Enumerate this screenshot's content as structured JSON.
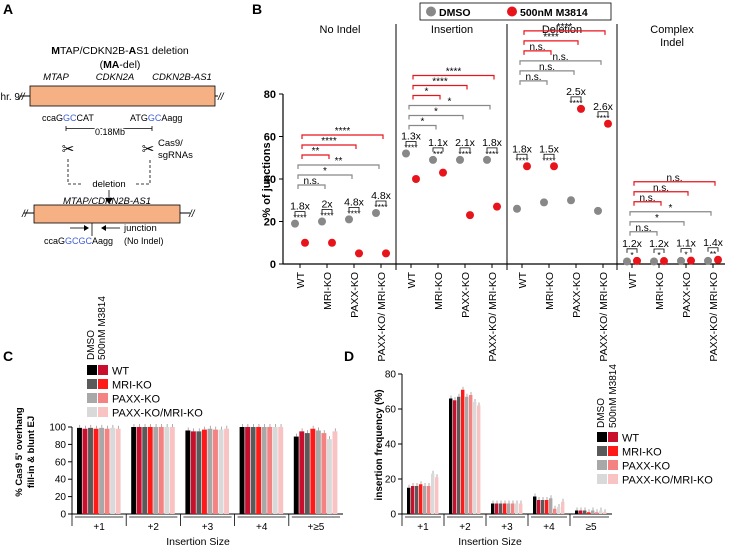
{
  "panels": {
    "A": {
      "label": "A",
      "title_line1": "MTAP/CDKN2B-AS1 deletion",
      "title_line2": "(MA-del)",
      "chr": "Chr. 9",
      "genes": [
        "MTAP",
        "CDKN2A",
        "CDKN2B-AS1"
      ],
      "left_seq": {
        "pre": "ccaG",
        "hl": "GC",
        "post": "CAT"
      },
      "right_seq": {
        "pre": "ATG",
        "hl": "GC",
        "post": "Aagg"
      },
      "distance": "0.18Mb",
      "cas9": "Cas9/",
      "sgrnas": "sgRNAs",
      "deletion": "deletion",
      "fused_gene": "MTAP/CDKN2B-AS1",
      "junction": "junction",
      "junction_seq": {
        "pre": "ccaG",
        "hl": "GCGC",
        "post": "Aagg"
      },
      "no_indel": "(No Indel)"
    },
    "B": {
      "label": "B",
      "legend": {
        "dmso": "DMSO",
        "m3814": "500nM M3814"
      },
      "y_label": "% of junctions",
      "y_ticks": [
        "0",
        "20",
        "40",
        "60",
        "80"
      ],
      "groups": [
        {
          "title": "No Indel",
          "folds": [
            "1.8x",
            "2x",
            "4.8x",
            "4.8x"
          ],
          "sigs": [
            "****",
            "****",
            "****",
            "****"
          ],
          "brackets": [
            {
              "label": "n.s.",
              "c": "g"
            },
            {
              "label": "*",
              "c": "g"
            },
            {
              "label": "**",
              "c": "g"
            },
            {
              "label": "**",
              "c": "r"
            },
            {
              "label": "****",
              "c": "r"
            },
            {
              "label": "****",
              "c": "r"
            }
          ]
        },
        {
          "title": "Insertion",
          "folds": [
            "1.3x",
            "1.1x",
            "2.1x",
            "1.8x"
          ],
          "sigs": [
            "****",
            "***",
            "****",
            "****"
          ],
          "brackets": [
            {
              "label": "*",
              "c": "g"
            },
            {
              "label": "*",
              "c": "g"
            },
            {
              "label": "*",
              "c": "g"
            },
            {
              "label": "*",
              "c": "r"
            },
            {
              "label": "****",
              "c": "r"
            },
            {
              "label": "****",
              "c": "r"
            }
          ]
        },
        {
          "title": "Deletion",
          "folds": [
            "1.8x",
            "1.5x",
            "2.5x",
            "2.6x"
          ],
          "sigs": [
            "****",
            "****",
            "****",
            "****"
          ],
          "brackets": [
            {
              "label": "n.s.",
              "c": "g"
            },
            {
              "label": "n.s.",
              "c": "g"
            },
            {
              "label": "n.s.",
              "c": "g"
            },
            {
              "label": "n.s.",
              "c": "r"
            },
            {
              "label": "****",
              "c": "r"
            },
            {
              "label": "****",
              "c": "r"
            }
          ]
        },
        {
          "title": "Complex Indel",
          "title_line1": "Complex",
          "title_line2": "Indel",
          "folds": [
            "1.2x",
            "1.2x",
            "1.1x",
            "1.4x"
          ],
          "sigs": [
            "*",
            "*",
            "*",
            "**"
          ],
          "brackets": [
            {
              "label": "n.s.",
              "c": "g"
            },
            {
              "label": "*",
              "c": "g"
            },
            {
              "label": "*",
              "c": "g"
            },
            {
              "label": "n.s.",
              "c": "r"
            },
            {
              "label": "n.s.",
              "c": "r"
            },
            {
              "label": "n.s.",
              "c": "r"
            }
          ]
        }
      ],
      "categories": [
        "WT",
        "MRI-KO",
        "PAXX-KO",
        "PAXX-KO/ MRI-KO"
      ]
    },
    "C": {
      "label": "C",
      "y_label_line1": "% Cas9 5' overhang",
      "y_label_line2": "fill-in & blunt EJ",
      "y_ticks": [
        "0",
        "20",
        "40",
        "60",
        "80",
        "100"
      ],
      "x_label": "Insertion Size",
      "categories": [
        "+1",
        "+2",
        "+3",
        "+4",
        "+≥5"
      ],
      "legend_header": [
        "DMSO",
        "500nM M3814"
      ],
      "legend": [
        "WT",
        "MRI-KO",
        "PAXX-KO",
        "PAXX-KO/MRI-KO"
      ]
    },
    "D": {
      "label": "D",
      "y_label": "insertion frequency (%)",
      "y_ticks": [
        "0",
        "20",
        "40",
        "60",
        "80"
      ],
      "x_label": "Insertion Size",
      "categories": [
        "+1",
        "+2",
        "+3",
        "+4",
        "≥5"
      ],
      "legend_header": [
        "DMSO",
        "500nM M3814"
      ],
      "legend": [
        "WT",
        "MRI-KO",
        "PAXX-KO",
        "PAXX-KO/MRI-KO"
      ]
    }
  },
  "colors": {
    "dmso": "#888888",
    "m3814": "#e8141b",
    "cond": [
      "#000000",
      "#c8102e",
      "#5a5a5a",
      "#ff1a1a",
      "#a8a8a8",
      "#f58282",
      "#d9d9d9",
      "#f9c3c3"
    ],
    "orange": "#f5b183"
  },
  "chart_data": [
    {
      "type": "scatter",
      "title": "% of junctions",
      "ylabel": "% of junctions",
      "ylim": [
        0,
        80
      ],
      "categories": [
        "WT",
        "MRI-KO",
        "PAXX-KO",
        "PAXX-KO/ MRI-KO"
      ],
      "groups": [
        "No Indel",
        "Insertion",
        "Deletion",
        "Complex Indel"
      ],
      "series": [
        {
          "name": "DMSO",
          "values": [
            [
              19,
              20,
              21,
              24
            ],
            [
              52,
              49,
              49,
              49
            ],
            [
              26,
              29,
              30,
              25
            ],
            [
              1.2,
              1.2,
              1.5,
              1.5
            ]
          ]
        },
        {
          "name": "500nM M3814",
          "values": [
            [
              10,
              10,
              5,
              5
            ],
            [
              40,
              43,
              23,
              27
            ],
            [
              46,
              46,
              73,
              66
            ],
            [
              1.5,
              1.4,
              1.6,
              2
            ]
          ]
        }
      ]
    },
    {
      "type": "bar",
      "title": "% Cas9 5' overhang fill-in & blunt EJ",
      "ylabel": "% Cas9 5' overhang fill-in & blunt EJ",
      "xlabel": "Insertion Size",
      "ylim": [
        0,
        100
      ],
      "categories": [
        "+1",
        "+2",
        "+3",
        "+4",
        "+≥5"
      ],
      "series": [
        {
          "name": "WT DMSO",
          "values": [
            99,
            100,
            96,
            100,
            89
          ]
        },
        {
          "name": "WT 500nM M3814",
          "values": [
            98,
            100,
            95,
            100,
            95
          ]
        },
        {
          "name": "MRI-KO DMSO",
          "values": [
            99,
            100,
            95,
            100,
            93
          ]
        },
        {
          "name": "MRI-KO 500nM M3814",
          "values": [
            98,
            100,
            97,
            100,
            98
          ]
        },
        {
          "name": "PAXX-KO DMSO",
          "values": [
            99,
            100,
            98,
            100,
            96
          ]
        },
        {
          "name": "PAXX-KO 500nM M3814",
          "values": [
            98,
            100,
            97,
            100,
            93
          ]
        },
        {
          "name": "PAXX-KO/MRI-KO DMSO",
          "values": [
            99,
            100,
            97,
            100,
            86
          ]
        },
        {
          "name": "PAXX-KO/MRI-KO 500nM M3814",
          "values": [
            98,
            100,
            98,
            100,
            95
          ]
        }
      ]
    },
    {
      "type": "bar",
      "title": "insertion frequency (%)",
      "ylabel": "insertion frequency (%)",
      "xlabel": "Insertion Size",
      "ylim": [
        0,
        80
      ],
      "categories": [
        "+1",
        "+2",
        "+3",
        "+4",
        "≥5"
      ],
      "series": [
        {
          "name": "WT DMSO",
          "values": [
            15,
            66,
            6,
            10,
            2
          ]
        },
        {
          "name": "WT 500nM M3814",
          "values": [
            16,
            65,
            6,
            8,
            2
          ]
        },
        {
          "name": "MRI-KO DMSO",
          "values": [
            16,
            67,
            6,
            8,
            2
          ]
        },
        {
          "name": "MRI-KO 500nM M3814",
          "values": [
            17,
            71,
            6,
            8,
            1
          ]
        },
        {
          "name": "PAXX-KO DMSO",
          "values": [
            16,
            67,
            6,
            9,
            2
          ]
        },
        {
          "name": "PAXX-KO 500nM M3814",
          "values": [
            16,
            68,
            6,
            3,
            1
          ]
        },
        {
          "name": "PAXX-KO/MRI-KO DMSO",
          "values": [
            23,
            64,
            6,
            4,
            2
          ]
        },
        {
          "name": "PAXX-KO/MRI-KO 500nM M3814",
          "values": [
            21,
            62,
            6,
            7,
            1
          ]
        }
      ]
    }
  ]
}
